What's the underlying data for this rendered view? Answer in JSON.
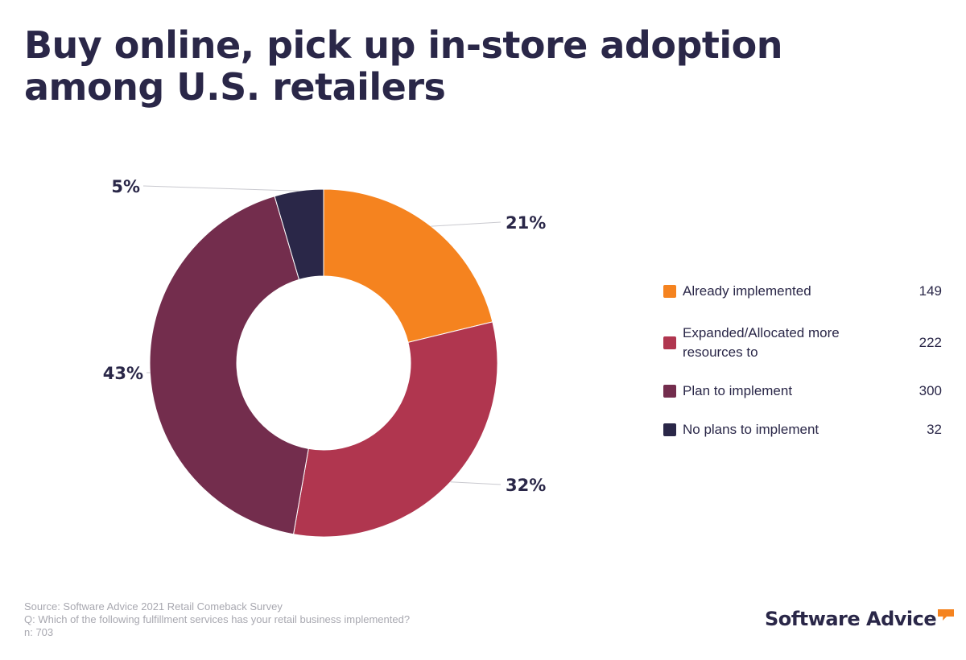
{
  "header": {
    "title_line1": "Buy online, pick up in-store adoption",
    "title_line2": "among U.S. retailers"
  },
  "chart_data": {
    "type": "pie",
    "donut": true,
    "categories": [
      "Already implemented",
      "Expanded/Allocated more resources to",
      "Plan to implement",
      "No plans to implement"
    ],
    "values": [
      149,
      222,
      300,
      32
    ],
    "percent_labels": [
      "21%",
      "32%",
      "43%",
      "5%"
    ],
    "colors": [
      "#f5831f",
      "#b0364f",
      "#732d4d",
      "#2a2748"
    ],
    "legend_placement": "right"
  },
  "legend": [
    {
      "label": "Already implemented",
      "value": "149",
      "color": "#f5831f"
    },
    {
      "label": "Expanded/Allocated more resources to",
      "value": "222",
      "color": "#b0364f"
    },
    {
      "label": "Plan to implement",
      "value": "300",
      "color": "#732d4d"
    },
    {
      "label": "No plans to implement",
      "value": "32",
      "color": "#2a2748"
    }
  ],
  "footnote": {
    "source": "Source: Software Advice 2021 Retail Comeback Survey",
    "question": "Q: Which of the following fulfillment services has your retail business implemented?",
    "n": "n: 703"
  },
  "logo": {
    "text": "Software Advice",
    "icon": "speech-bubble-icon",
    "accent_color": "#f5831f"
  }
}
